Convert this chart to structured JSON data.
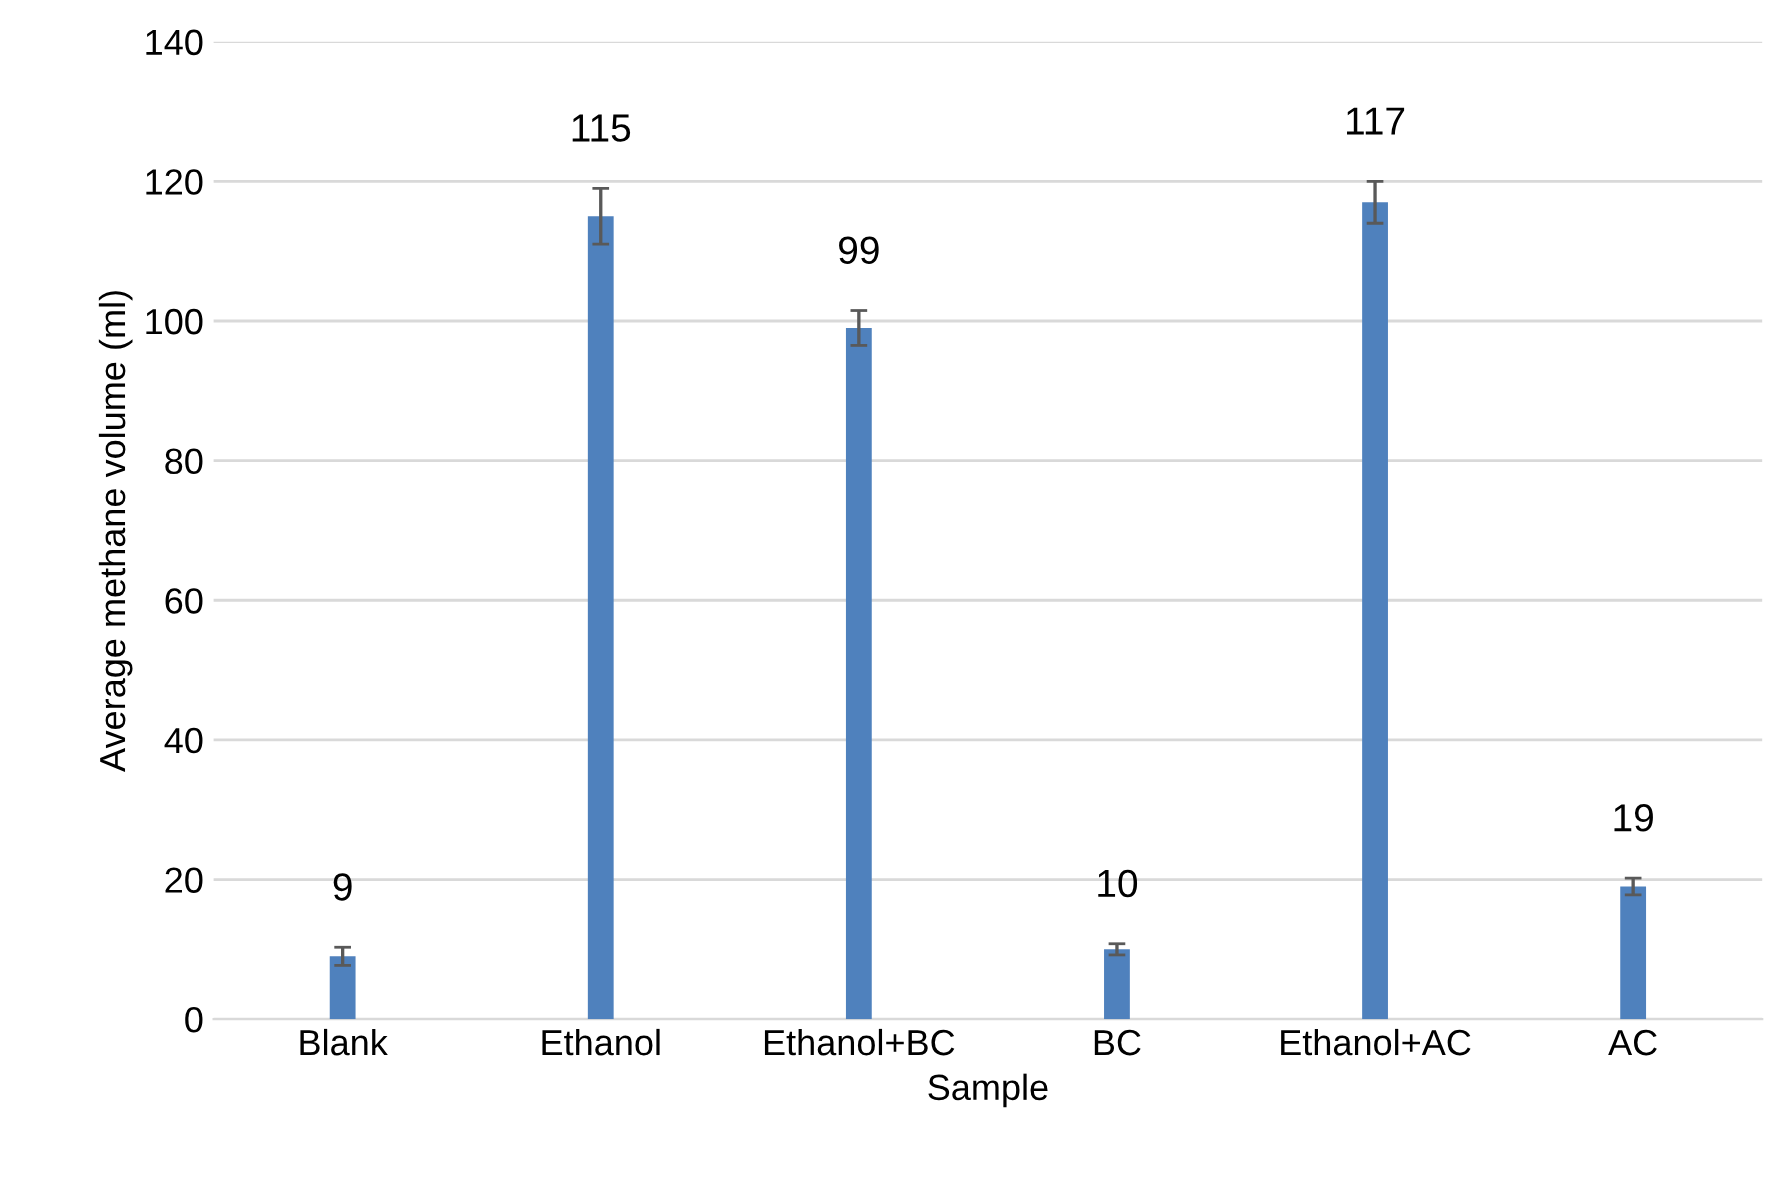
{
  "chart_data": {
    "type": "bar",
    "xlabel": "Sample",
    "ylabel": "Average methane volume (ml)",
    "categories": [
      "Blank",
      "Ethanol",
      "Ethanol+BC",
      "BC",
      "Ethanol+AC",
      "AC"
    ],
    "values": [
      9,
      115,
      99,
      10,
      117,
      19
    ],
    "errors": [
      1.3,
      4,
      2.5,
      0.8,
      3,
      1.2
    ],
    "color": "#4f81bd",
    "ylim": [
      0,
      140
    ],
    "yticks": [
      0,
      20,
      40,
      60,
      80,
      100,
      120,
      140
    ],
    "grid": "y",
    "data_labels": true
  }
}
